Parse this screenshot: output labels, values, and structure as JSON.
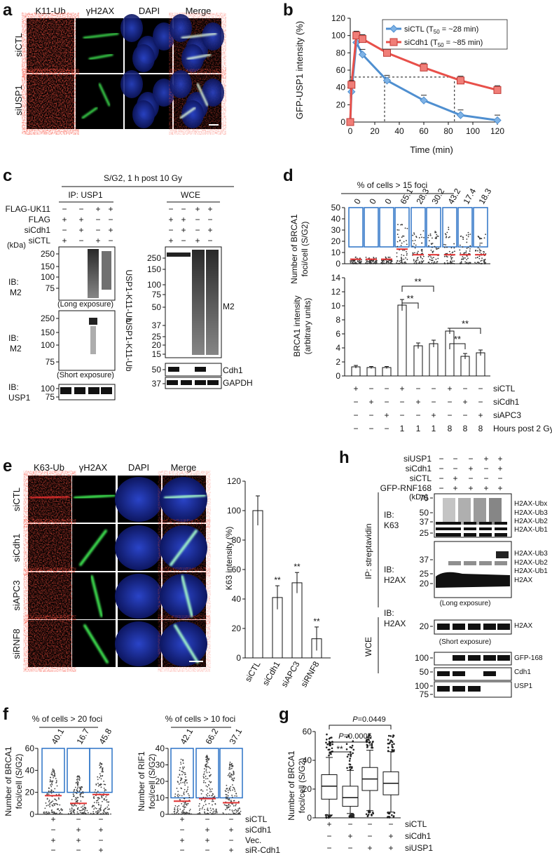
{
  "panels": {
    "a": "a",
    "b": "b",
    "c": "c",
    "d": "d",
    "e": "e",
    "f": "f",
    "g": "g",
    "h": "h"
  },
  "a": {
    "cols": [
      "K11-Ub",
      "γH2AX",
      "DAPI",
      "Merge"
    ],
    "rows": [
      "siCTL",
      "siUSP1"
    ]
  },
  "b": {
    "chart_data": {
      "type": "line",
      "xlabel": "Time (min)",
      "ylabel": "GFP-USP1 intensity (%)",
      "xlim": [
        0,
        120
      ],
      "ylim": [
        0,
        120
      ],
      "xticks": [
        0,
        20,
        40,
        60,
        80,
        100,
        120
      ],
      "yticks": [
        0,
        20,
        40,
        60,
        80,
        100,
        120
      ],
      "series": [
        {
          "name": "siCTL (T50 = ~28 min)",
          "color": "#4f8fd0",
          "x": [
            0,
            1,
            5,
            10,
            30,
            60,
            90,
            120
          ],
          "y": [
            0,
            35,
            92,
            78,
            48,
            25,
            8,
            2
          ]
        },
        {
          "name": "siCdh1 (T50 = ~85 min)",
          "color": "#e8504a",
          "x": [
            0,
            1,
            5,
            10,
            30,
            60,
            90,
            120
          ],
          "y": [
            0,
            43,
            100,
            96,
            80,
            63,
            48,
            37
          ]
        }
      ],
      "t50": [
        {
          "x": 28,
          "y": 52
        },
        {
          "x": 85,
          "y": 52
        }
      ]
    },
    "legend": [
      "siCTL (T",
      "50",
      " = ~28 min)",
      "siCdh1 (T",
      "50",
      " = ~85 min)"
    ]
  },
  "c": {
    "title": "S/G2, 1 h post 10 Gy",
    "ip": "IP: USP1",
    "wce": "WCE",
    "rows": [
      {
        "label": "FLAG-UK11",
        "v": [
          "−",
          "−",
          "+",
          "+"
        ]
      },
      {
        "label": "FLAG",
        "v": [
          "+",
          "+",
          "−",
          "−"
        ]
      },
      {
        "label": "siCdh1",
        "v": [
          "−",
          "+",
          "−",
          "+"
        ]
      },
      {
        "label": "siCTL",
        "v": [
          "+",
          "−",
          "+",
          "−"
        ]
      }
    ],
    "wce_rows": [
      [
        "−",
        "−",
        "+",
        "+"
      ],
      [
        "+",
        "+",
        "−",
        "−"
      ],
      [
        "−",
        "+",
        "−",
        "+"
      ],
      [
        "+",
        "−",
        "+",
        "−"
      ]
    ],
    "kda": "(kDa)",
    "ib_m2": [
      "IB:",
      "M2"
    ],
    "ib_usp1": [
      "IB:",
      "USP1"
    ],
    "long": "(Long exposure)",
    "short": "(Short exposure)",
    "usp1k11": "USP1-K11-Ub",
    "m2": "M2",
    "cdh1": "Cdh1",
    "gapdh": "GAPDH",
    "mw1": [
      "250",
      "150",
      "100",
      "75"
    ],
    "mw2": [
      "250",
      "150",
      "100",
      "75"
    ],
    "mw3": [
      "100",
      "75"
    ],
    "mw4": [
      "250",
      "150",
      "100",
      "75",
      "50",
      "37",
      "25",
      "20",
      "15"
    ],
    "mw5": [
      "50",
      "37"
    ]
  },
  "d": {
    "title": "% of cells > 15 foci",
    "pct": [
      "0",
      "0",
      "0",
      "65.1",
      "28.3",
      "30.2",
      "43.2",
      "17.4",
      "18.3"
    ],
    "top_ylabel": [
      "Number of BRCA1",
      "foci/cell (S/G2)"
    ],
    "top_yticks": [
      "0",
      "10",
      "20",
      "30",
      "40",
      "50"
    ],
    "chart_data": {
      "type": "bar",
      "ylabel": "BRCA1 intensity (arbitrary units)",
      "ylim": [
        0,
        14
      ],
      "values": [
        1.3,
        1.2,
        1.2,
        10.1,
        4.3,
        4.6,
        6.4,
        2.8,
        3.3
      ],
      "errors": [
        0.2,
        0.15,
        0.15,
        0.8,
        0.4,
        0.5,
        0.4,
        0.4,
        0.4
      ]
    },
    "bot_ylabel": [
      "BRCA1 intensity",
      "(arbitrary units)"
    ],
    "bot_yticks": [
      "0",
      "2",
      "4",
      "6",
      "8",
      "10",
      "12",
      "14"
    ],
    "sig": "**",
    "rows": [
      {
        "label": "siCTL",
        "v": [
          "+",
          "−",
          "−",
          "+",
          "−",
          "−",
          "+",
          "−",
          "−"
        ]
      },
      {
        "label": "siCdh1",
        "v": [
          "−",
          "+",
          "−",
          "−",
          "+",
          "−",
          "−",
          "+",
          "−"
        ]
      },
      {
        "label": "siAPC3",
        "v": [
          "−",
          "−",
          "+",
          "−",
          "−",
          "+",
          "−",
          "−",
          "+"
        ]
      },
      {
        "label": "Hours post 2 Gy",
        "v": [
          "−",
          "−",
          "−",
          "1",
          "1",
          "1",
          "8",
          "8",
          "8"
        ]
      }
    ]
  },
  "e": {
    "cols": [
      "K63-Ub",
      "γH2AX",
      "DAPI",
      "Merge"
    ],
    "rows": [
      "siCTL",
      "siCdh1",
      "siAPC3",
      "siRNF8"
    ],
    "chart_data": {
      "type": "bar",
      "categories": [
        "siCTL",
        "siCdh1",
        "siAPC3",
        "siRNF8"
      ],
      "values": [
        100,
        41,
        51,
        13
      ],
      "errors": [
        10,
        8,
        7,
        8
      ],
      "ylabel": "K63 intensity (%)",
      "ylim": [
        0,
        120
      ]
    },
    "yticks": [
      "0",
      "20",
      "40",
      "60",
      "80",
      "100",
      "120"
    ],
    "sig": "**"
  },
  "f": {
    "left": {
      "title": "% of cells > 20 foci",
      "pct": [
        "40.1",
        "16.7",
        "45.8"
      ],
      "ylabel": [
        "Number of BRCA1",
        "foci/cell (S/G2)"
      ],
      "yticks": [
        "0",
        "20",
        "40",
        "60"
      ]
    },
    "right": {
      "title": "% of cells > 10 foci",
      "pct": [
        "42.1",
        "66.2",
        "37.1"
      ],
      "ylabel": [
        "Number of RIF1",
        "foci/cell (S/G2)"
      ],
      "yticks": [
        "0",
        "10",
        "20",
        "30",
        "40"
      ]
    },
    "rows": [
      {
        "label": "siCTL",
        "v": [
          "+",
          "−",
          "−"
        ]
      },
      {
        "label": "siCdh1",
        "v": [
          "−",
          "+",
          "+"
        ]
      },
      {
        "label": "Vec.",
        "v": [
          "+",
          "+",
          "−"
        ]
      },
      {
        "label": "siR-Cdh1",
        "v": [
          "−",
          "−",
          "+"
        ]
      }
    ]
  },
  "g": {
    "ylabel": [
      "Number of BRCA1",
      "foci/cell (S/G2)"
    ],
    "yticks": [
      "0",
      "20",
      "40",
      "60"
    ],
    "chart_data": {
      "type": "box",
      "categories": [
        "siCTL",
        "siCdh1",
        "siUSP1",
        "siCdh1+siUSP1"
      ],
      "ylim": [
        0,
        60
      ],
      "boxes": [
        {
          "min": 2,
          "q1": 13,
          "median": 22,
          "q3": 30,
          "max": 42
        },
        {
          "min": 3,
          "q1": 8,
          "median": 14,
          "q3": 22,
          "max": 33
        },
        {
          "min": 5,
          "q1": 19,
          "median": 27,
          "q3": 35,
          "max": 47
        },
        {
          "min": 4,
          "q1": 16,
          "median": 24,
          "q3": 32,
          "max": 46
        }
      ]
    },
    "p1": "=0.0449",
    "p2": "=0.0005",
    "pt": "P",
    "sig": "**",
    "rows": [
      {
        "label": "siCTL",
        "v": [
          "+",
          "−",
          "−",
          "−"
        ]
      },
      {
        "label": "siCdh1",
        "v": [
          "−",
          "+",
          "−",
          "+"
        ]
      },
      {
        "label": "siUSP1",
        "v": [
          "−",
          "−",
          "+",
          "+"
        ]
      }
    ]
  },
  "h": {
    "rows": [
      {
        "label": "siUSP1",
        "v": [
          "−",
          "−",
          "−",
          "+",
          "+"
        ]
      },
      {
        "label": "siCdh1",
        "v": [
          "−",
          "−",
          "+",
          "−",
          "+"
        ]
      },
      {
        "label": "siCTL",
        "v": [
          "−",
          "+",
          "−",
          "−",
          "−"
        ]
      },
      {
        "label": "GFP-RNF168",
        "v": [
          "−",
          "+",
          "+",
          "+",
          "+"
        ]
      }
    ],
    "ip": "IP: streptavidin",
    "wce": "WCE",
    "kda": "(kDa)",
    "ib_k63": [
      "IB:",
      "K63"
    ],
    "ib_h2ax1": [
      "IB:",
      "H2AX"
    ],
    "ib_h2ax2": [
      "IB:",
      "H2AX"
    ],
    "long": "(Long exposure)",
    "short": "(Short exposure)",
    "lab1": [
      "H2AX-Ubx",
      "H2AX-Ub3",
      "H2AX-Ub2",
      "H2AX-Ub1"
    ],
    "lab2": [
      "H2AX-Ub3",
      "H2AX-Ub2",
      "H2AX-Ub1",
      "H2AX"
    ],
    "lab3": "H2AX",
    "gfp": "GFP-168",
    "cdh1": "Cdh1",
    "usp1": "USP1",
    "mw1": [
      "75",
      "50",
      "37",
      "25"
    ],
    "mw2": [
      "37",
      "25",
      "20"
    ],
    "mw3": [
      "20"
    ],
    "mw4": [
      "100"
    ],
    "mw5": [
      "50"
    ],
    "mw6": [
      "100",
      "75"
    ]
  }
}
